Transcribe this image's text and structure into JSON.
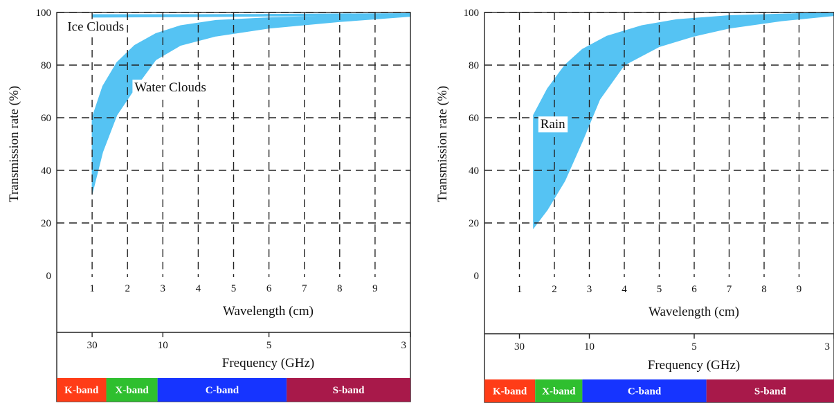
{
  "chart_data": [
    {
      "type": "area",
      "id": "clouds",
      "xlabel": "Wavelength (cm)",
      "ylabel": "Transmission rate (%)",
      "xlim": [
        0,
        10
      ],
      "ylim": [
        0,
        100
      ],
      "grid": true,
      "x_ticks": [
        1,
        2,
        3,
        4,
        5,
        6,
        7,
        8,
        9
      ],
      "y_ticks": [
        0,
        20,
        40,
        60,
        80,
        100
      ],
      "secondary_axis": {
        "label": "Frequency (GHz)",
        "ticks": [
          {
            "label": "30",
            "wavelength_cm": 1
          },
          {
            "label": "10",
            "wavelength_cm": 3
          },
          {
            "label": "5",
            "wavelength_cm": 6
          },
          {
            "label": "3",
            "wavelength_cm": 10
          }
        ]
      },
      "bands": [
        {
          "label": "K-band",
          "from_cm": 0,
          "to_cm": 1.4,
          "color": "#ff3c17"
        },
        {
          "label": "X-band",
          "from_cm": 1.4,
          "to_cm": 2.85,
          "color": "#2fbf2f"
        },
        {
          "label": "C-band",
          "from_cm": 2.85,
          "to_cm": 6.5,
          "color": "#1634ff"
        },
        {
          "label": "S-band",
          "from_cm": 6.5,
          "to_cm": 10,
          "color": "#a8194a"
        }
      ],
      "series": [
        {
          "name": "Ice Clouds",
          "upper": [
            [
              1,
              99.2
            ],
            [
              4,
              99.2
            ],
            [
              10,
              99.6
            ]
          ],
          "lower": [
            [
              1,
              98.2
            ],
            [
              4,
              98.4
            ],
            [
              10,
              99.0
            ]
          ],
          "color": "#55c3f3"
        },
        {
          "name": "Water Clouds",
          "upper": [
            [
              1,
              60
            ],
            [
              1.3,
              72
            ],
            [
              1.7,
              81
            ],
            [
              2.2,
              87.5
            ],
            [
              2.8,
              92
            ],
            [
              3.5,
              95
            ],
            [
              4.5,
              97
            ],
            [
              6,
              98
            ],
            [
              8,
              98.8
            ],
            [
              10,
              99.4
            ]
          ],
          "lower": [
            [
              1,
              31
            ],
            [
              1.3,
              47
            ],
            [
              1.7,
              61
            ],
            [
              2.2,
              71
            ],
            [
              2.8,
              82
            ],
            [
              3.5,
              87.5
            ],
            [
              4.5,
              91
            ],
            [
              6,
              94
            ],
            [
              8,
              96.5
            ],
            [
              10,
              98.5
            ]
          ],
          "color": "#55c3f3"
        }
      ],
      "annotations": [
        {
          "text": "Ice Clouds",
          "x": 0.3,
          "y": 93
        },
        {
          "text": "Water Clouds",
          "x": 2.2,
          "y": 70
        }
      ]
    },
    {
      "type": "area",
      "id": "rain",
      "xlabel": "Wavelength (cm)",
      "ylabel": "Transmission rate (%)",
      "xlim": [
        0,
        10
      ],
      "ylim": [
        0,
        100
      ],
      "grid": true,
      "x_ticks": [
        1,
        2,
        3,
        4,
        5,
        6,
        7,
        8,
        9
      ],
      "y_ticks": [
        0,
        20,
        40,
        60,
        80,
        100
      ],
      "secondary_axis": {
        "label": "Frequency (GHz)",
        "ticks": [
          {
            "label": "30",
            "wavelength_cm": 1
          },
          {
            "label": "10",
            "wavelength_cm": 3
          },
          {
            "label": "5",
            "wavelength_cm": 6
          },
          {
            "label": "3",
            "wavelength_cm": 10
          }
        ]
      },
      "bands": [
        {
          "label": "K-band",
          "from_cm": 0,
          "to_cm": 1.45,
          "color": "#ff3c17"
        },
        {
          "label": "X-band",
          "from_cm": 1.45,
          "to_cm": 2.8,
          "color": "#2fbf2f"
        },
        {
          "label": "C-band",
          "from_cm": 2.8,
          "to_cm": 6.35,
          "color": "#1634ff"
        },
        {
          "label": "S-band",
          "from_cm": 6.35,
          "to_cm": 10,
          "color": "#a8194a"
        }
      ],
      "series": [
        {
          "name": "Rain",
          "upper": [
            [
              1.4,
              61
            ],
            [
              1.8,
              71
            ],
            [
              2.3,
              80
            ],
            [
              2.8,
              86
            ],
            [
              3.5,
              91
            ],
            [
              4.5,
              95
            ],
            [
              5.5,
              97.3
            ],
            [
              7,
              98.8
            ],
            [
              8.5,
              99.4
            ],
            [
              10,
              100
            ]
          ],
          "lower": [
            [
              1.4,
              18
            ],
            [
              1.8,
              25
            ],
            [
              2.3,
              36
            ],
            [
              2.8,
              51
            ],
            [
              3.3,
              67
            ],
            [
              4,
              80
            ],
            [
              5,
              87
            ],
            [
              6,
              91
            ],
            [
              7,
              94
            ],
            [
              8.5,
              96.8
            ],
            [
              10,
              98.8
            ]
          ],
          "color": "#55c3f3"
        }
      ],
      "annotations": [
        {
          "text": "Rain",
          "x": 1.6,
          "y": 56
        }
      ]
    }
  ]
}
